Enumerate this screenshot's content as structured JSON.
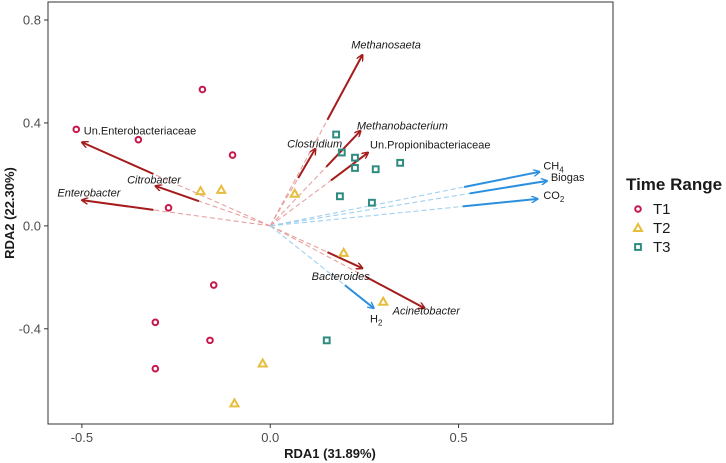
{
  "chart_data": {
    "type": "scatter",
    "subtype": "rda-biplot",
    "xlabel": "RDA1 (31.89%)",
    "ylabel": "RDA2 (22.30%)",
    "xlim": [
      -0.59,
      0.91
    ],
    "ylim": [
      -0.77,
      0.87
    ],
    "x_ticks": [
      -0.5,
      0.0,
      0.5
    ],
    "x_tick_labels": [
      "-0.5",
      "0.0",
      "0.5"
    ],
    "y_ticks": [
      -0.4,
      0.0,
      0.4,
      0.8
    ],
    "y_tick_labels": [
      "-0.4",
      "0.0",
      "0.4",
      "0.8"
    ],
    "grid": false,
    "origin": [
      0.0,
      0.0
    ],
    "legend": {
      "title": "Time Range",
      "position": "right",
      "entries": [
        {
          "key": "T1",
          "label": "T1",
          "marker": "circle",
          "color": "#c8174a"
        },
        {
          "key": "T2",
          "label": "T2",
          "marker": "triangle",
          "color": "#e6bd3c"
        },
        {
          "key": "T3",
          "label": "T3",
          "marker": "square",
          "color": "#2e8b7f"
        }
      ]
    },
    "series": [
      {
        "name": "T1",
        "points": [
          {
            "x": -0.515,
            "y": 0.375
          },
          {
            "x": -0.35,
            "y": 0.335
          },
          {
            "x": -0.18,
            "y": 0.53
          },
          {
            "x": -0.1,
            "y": 0.275
          },
          {
            "x": -0.27,
            "y": 0.07
          },
          {
            "x": -0.15,
            "y": -0.23
          },
          {
            "x": -0.305,
            "y": -0.375
          },
          {
            "x": -0.16,
            "y": -0.445
          },
          {
            "x": -0.305,
            "y": -0.555
          }
        ]
      },
      {
        "name": "T2",
        "points": [
          {
            "x": -0.185,
            "y": 0.135
          },
          {
            "x": -0.13,
            "y": 0.14
          },
          {
            "x": 0.065,
            "y": 0.125
          },
          {
            "x": 0.195,
            "y": -0.105
          },
          {
            "x": 0.3,
            "y": -0.295
          },
          {
            "x": -0.02,
            "y": -0.535
          },
          {
            "x": -0.095,
            "y": -0.69
          }
        ]
      },
      {
        "name": "T3",
        "points": [
          {
            "x": 0.175,
            "y": 0.355
          },
          {
            "x": 0.19,
            "y": 0.285
          },
          {
            "x": 0.225,
            "y": 0.265
          },
          {
            "x": 0.225,
            "y": 0.225
          },
          {
            "x": 0.28,
            "y": 0.22
          },
          {
            "x": 0.345,
            "y": 0.245
          },
          {
            "x": 0.185,
            "y": 0.115
          },
          {
            "x": 0.27,
            "y": 0.09
          },
          {
            "x": 0.15,
            "y": -0.445
          }
        ]
      }
    ],
    "arrows": [
      {
        "label": "Un.Enterobacteriaceae",
        "group": "taxon",
        "italic": false,
        "x": -0.5,
        "y": 0.325,
        "lx": -0.495,
        "ly": 0.355,
        "anchor": "start"
      },
      {
        "label": "Citrobacter",
        "group": "taxon",
        "italic": true,
        "x": -0.305,
        "y": 0.155,
        "lx": -0.38,
        "ly": 0.165,
        "anchor": "start"
      },
      {
        "label": "Enterobacter",
        "group": "taxon",
        "italic": true,
        "x": -0.5,
        "y": 0.1,
        "lx": -0.565,
        "ly": 0.115,
        "anchor": "start"
      },
      {
        "label": "Methanosaeta",
        "group": "taxon",
        "italic": true,
        "x": 0.245,
        "y": 0.665,
        "lx": 0.215,
        "ly": 0.69,
        "anchor": "start"
      },
      {
        "label": "Methanobacterium",
        "group": "taxon",
        "italic": true,
        "x": 0.24,
        "y": 0.37,
        "lx": 0.23,
        "ly": 0.375,
        "anchor": "start"
      },
      {
        "label": "Clostridium",
        "group": "taxon",
        "italic": true,
        "x": 0.12,
        "y": 0.3,
        "lx": 0.045,
        "ly": 0.305,
        "anchor": "start"
      },
      {
        "label": "Un.Propionibacteriaceae",
        "group": "taxon",
        "italic": false,
        "x": 0.26,
        "y": 0.285,
        "lx": 0.265,
        "ly": 0.3,
        "anchor": "start"
      },
      {
        "label": "Bacteroides",
        "group": "taxon",
        "italic": true,
        "x": 0.245,
        "y": -0.165,
        "lx": 0.11,
        "ly": -0.21,
        "anchor": "start"
      },
      {
        "label": "Acinetobacter",
        "group": "taxon",
        "italic": true,
        "x": 0.41,
        "y": -0.32,
        "lx": 0.325,
        "ly": -0.345,
        "anchor": "start"
      },
      {
        "label": "CH4",
        "label_main": "CH",
        "label_sub": "4",
        "group": "env",
        "italic": false,
        "x": 0.715,
        "y": 0.21,
        "lx": 0.725,
        "ly": 0.22,
        "anchor": "start"
      },
      {
        "label": "Biogas",
        "group": "env",
        "italic": false,
        "x": 0.735,
        "y": 0.175,
        "lx": 0.745,
        "ly": 0.175,
        "anchor": "start"
      },
      {
        "label": "CO2",
        "label_main": "CO",
        "label_sub": "2",
        "group": "env",
        "italic": false,
        "x": 0.71,
        "y": 0.105,
        "lx": 0.725,
        "ly": 0.105,
        "anchor": "start"
      },
      {
        "label": "H2",
        "label_main": "H",
        "label_sub": "2",
        "group": "env",
        "italic": false,
        "x": 0.275,
        "y": -0.32,
        "lx": 0.265,
        "ly": -0.375,
        "anchor": "start"
      }
    ],
    "colors": {
      "taxon_arrow": "#a51c1c",
      "env_arrow": "#2b8fe0",
      "taxon_dash": "#e8a0a0",
      "env_dash": "#9fd0f2"
    }
  }
}
